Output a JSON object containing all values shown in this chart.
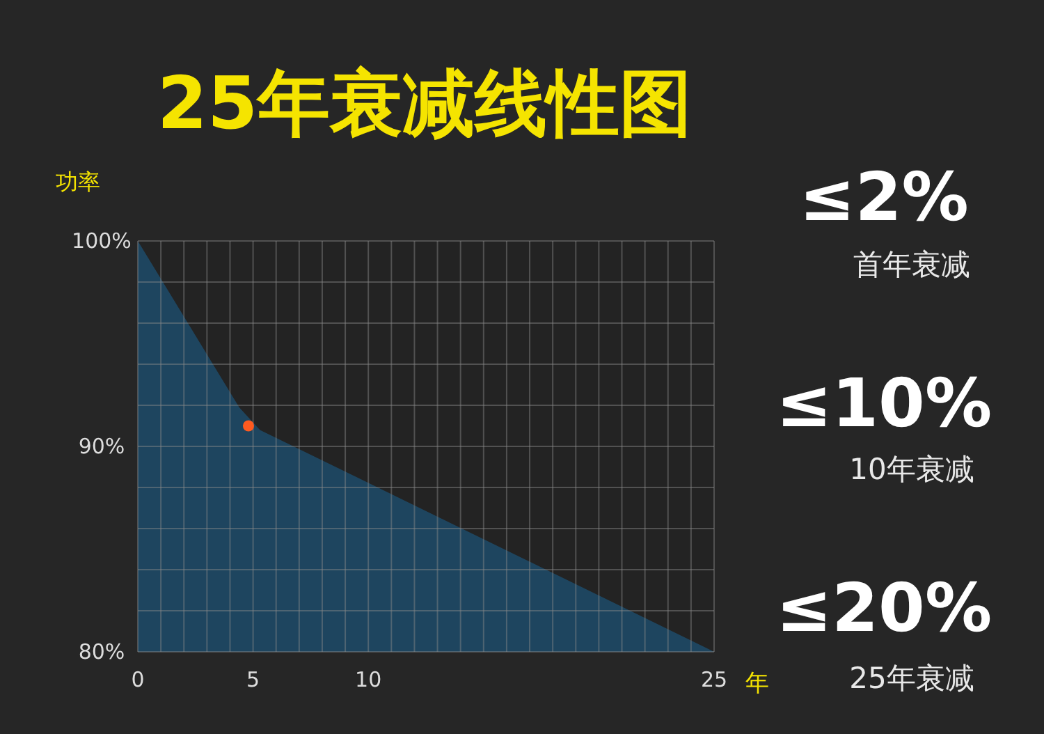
{
  "chart_data": {
    "type": "area",
    "title": "25年衰减线性图",
    "xlabel": "年",
    "ylabel": "功率",
    "xlim": [
      0,
      25
    ],
    "ylim": [
      80,
      100
    ],
    "xticks": [
      0,
      {
        "value": 1,
        "label": null
      },
      {
        "value": 2,
        "label": null
      },
      {
        "value": 3,
        "label": null
      },
      {
        "value": 4,
        "label": null
      },
      5,
      {
        "value": 6,
        "label": null
      },
      {
        "value": 7,
        "label": null
      },
      {
        "value": 8,
        "label": null
      },
      {
        "value": 9,
        "label": null
      },
      10,
      {
        "value": 11,
        "label": null
      },
      {
        "value": 12,
        "label": null
      },
      {
        "value": 13,
        "label": null
      },
      {
        "value": 14,
        "label": null
      },
      {
        "value": 15,
        "label": null
      },
      {
        "value": 16,
        "label": null
      },
      {
        "value": 17,
        "label": null
      },
      {
        "value": 18,
        "label": null
      },
      {
        "value": 19,
        "label": null
      },
      {
        "value": 20,
        "label": null
      },
      {
        "value": 21,
        "label": null
      },
      {
        "value": 22,
        "label": null
      },
      {
        "value": 23,
        "label": null
      },
      {
        "value": 24,
        "label": null
      },
      25
    ],
    "yticks": [
      {
        "value": 80,
        "label": "80%"
      },
      {
        "value": 82,
        "label": null
      },
      {
        "value": 84,
        "label": null
      },
      {
        "value": 86,
        "label": null
      },
      {
        "value": 88,
        "label": null
      },
      {
        "value": 90,
        "label": "90%"
      },
      {
        "value": 92,
        "label": null
      },
      {
        "value": 94,
        "label": null
      },
      {
        "value": 96,
        "label": null
      },
      {
        "value": 98,
        "label": null
      },
      {
        "value": 100,
        "label": "100%"
      }
    ],
    "grid": true,
    "series": [
      {
        "color": "#1f4863",
        "x": [
          0,
          4.4,
          5.3,
          25
        ],
        "values": [
          100,
          91.9,
          90.8,
          80
        ]
      },
      {
        "type": "scatter",
        "color": "#ff5a1f",
        "marker": "circle",
        "x": [
          4.8
        ],
        "values": [
          91
        ]
      }
    ],
    "annotations": [
      "≤2%",
      "首年衰减",
      "≤10%",
      "10年衰减",
      "≤20%",
      "25年衰减"
    ]
  }
}
